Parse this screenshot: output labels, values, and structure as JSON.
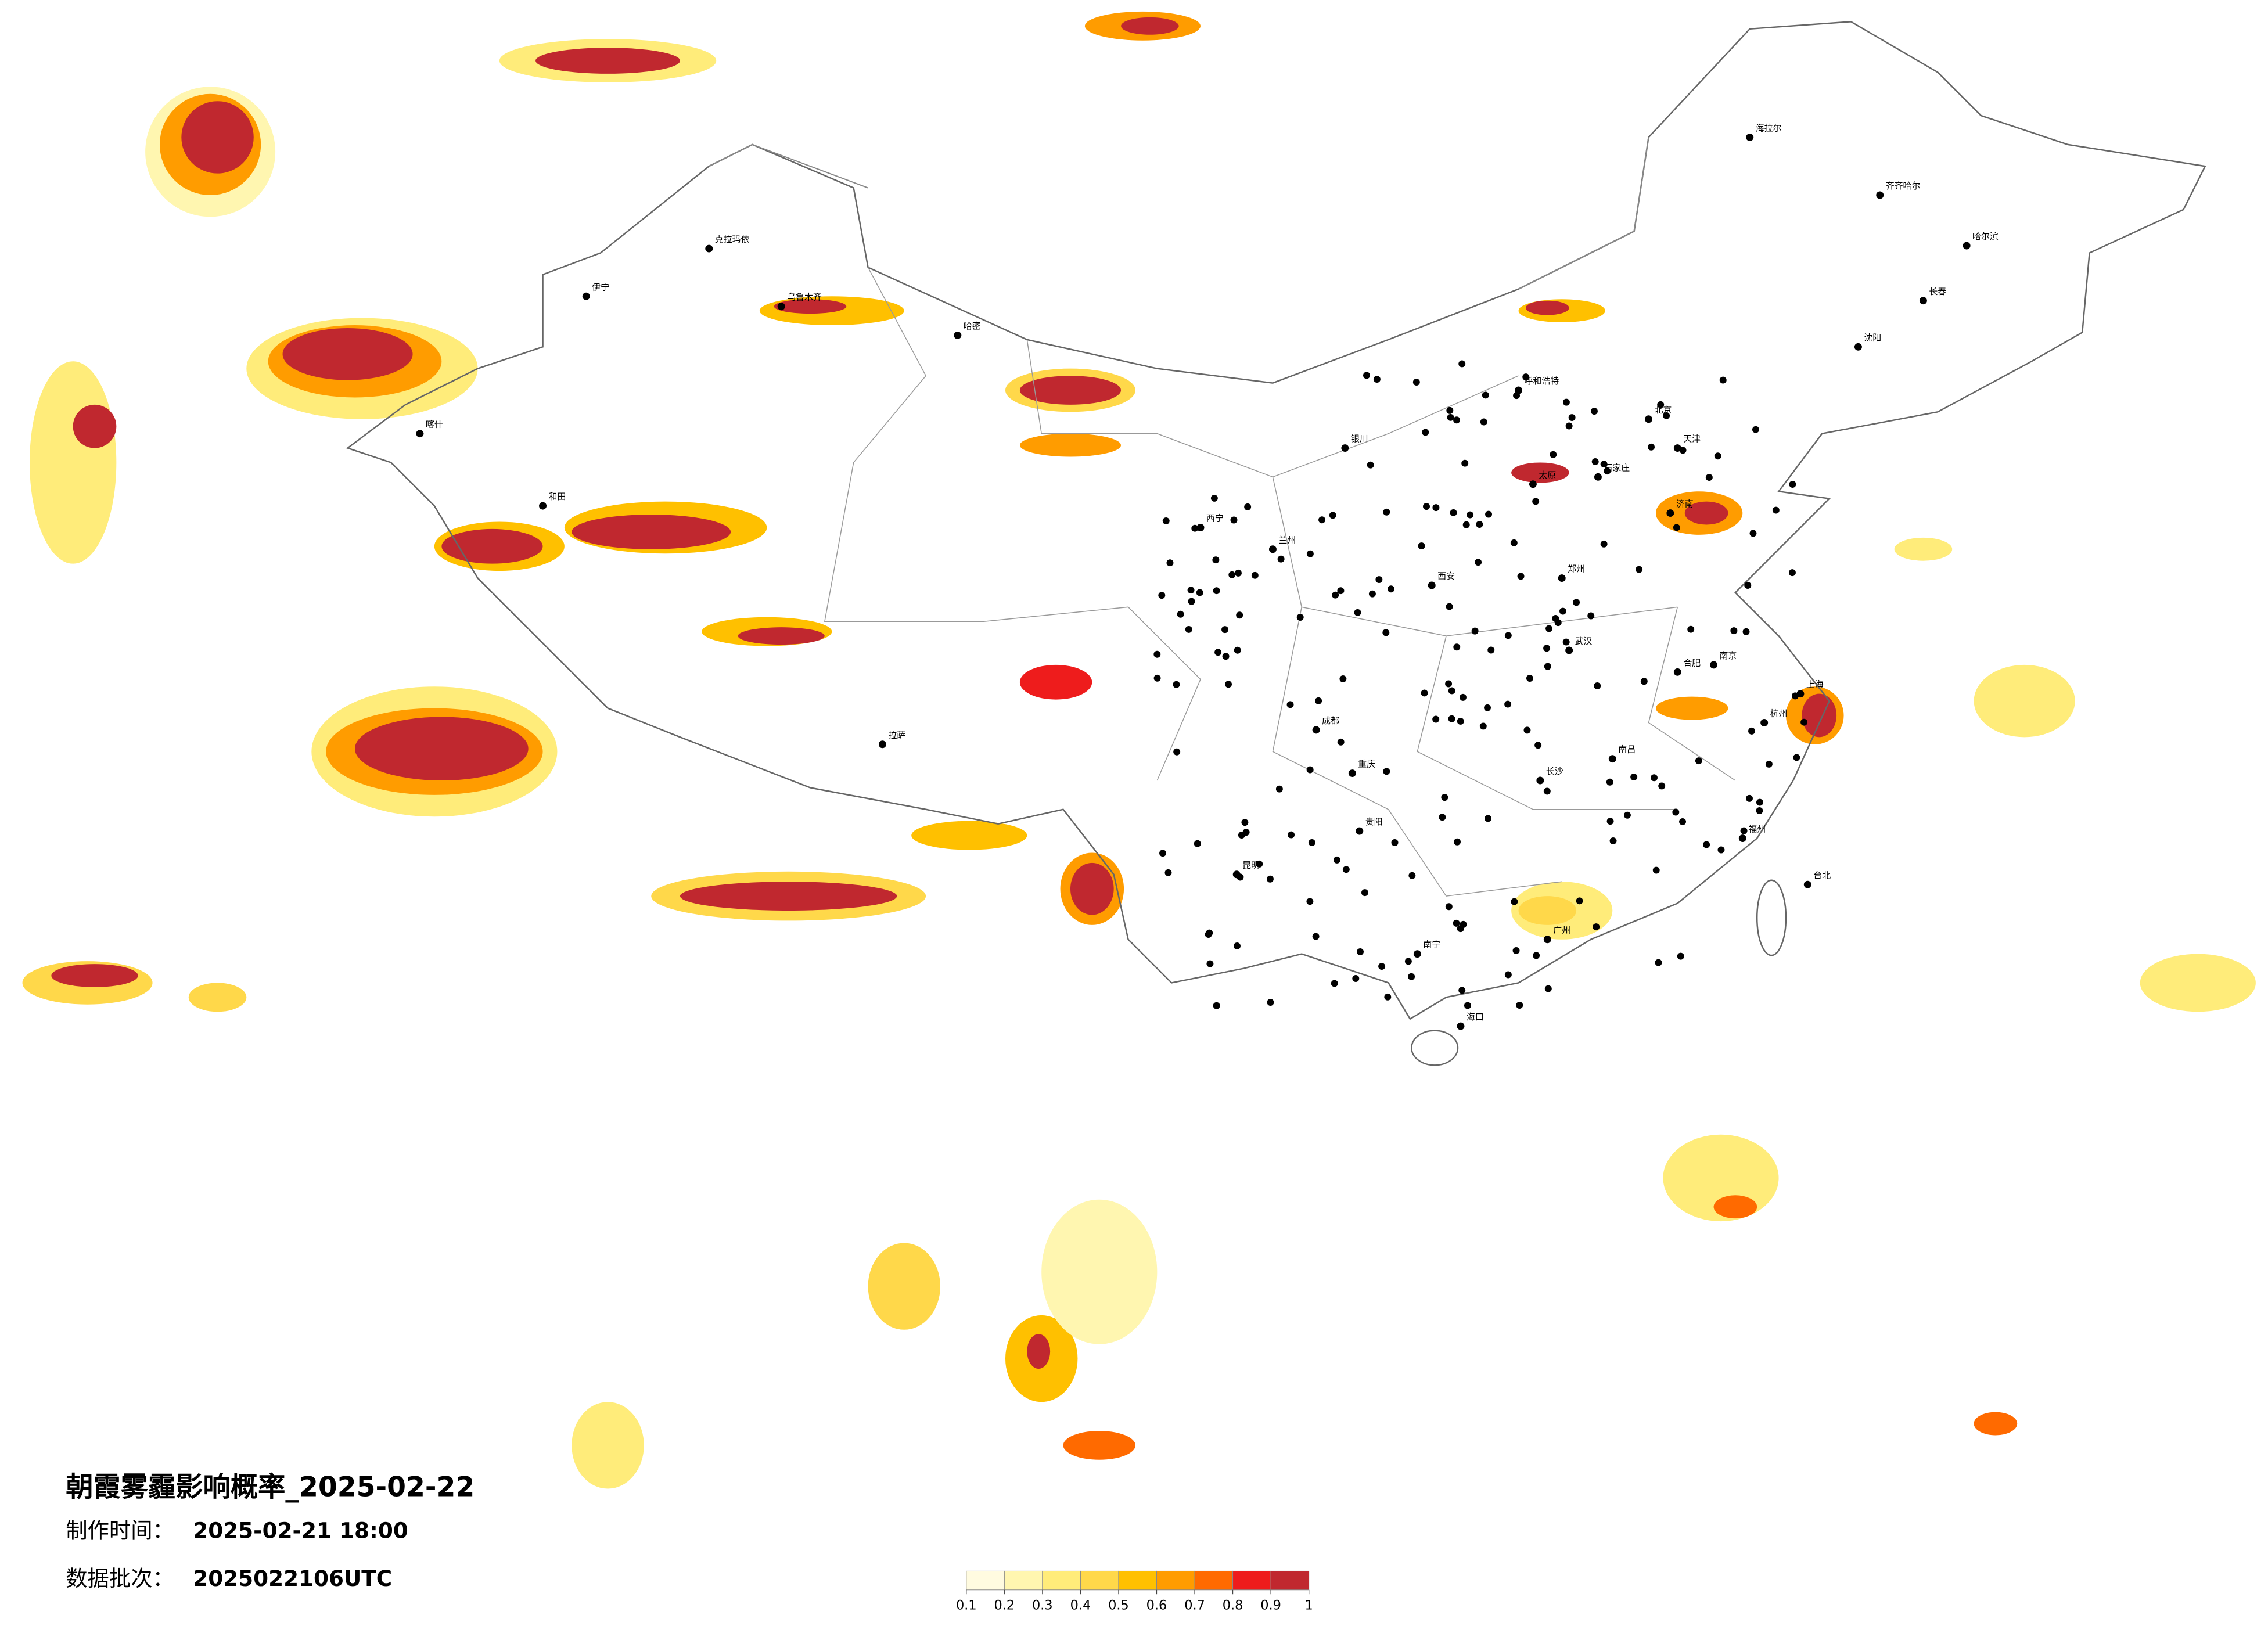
{
  "title": "朝霞雾霾影响概率_2025-02-22",
  "made_label": "制作时间：",
  "made_time": "2025-02-21 18:00",
  "batch_label": "数据批次：",
  "batch": "2025022106UTC",
  "legend": {
    "ticks": [
      0.1,
      0.2,
      0.3,
      0.4,
      0.5,
      0.6,
      0.7,
      0.8,
      0.9,
      1
    ],
    "colors": [
      "#fffbe0",
      "#fff6b0",
      "#ffec7a",
      "#ffd84a",
      "#ffc000",
      "#ff9c00",
      "#ff6a00",
      "#ee1c1c",
      "#c0282f"
    ]
  },
  "cities": [
    "哈尔滨",
    "长春",
    "沈阳",
    "北京",
    "天津",
    "石家庄",
    "太原",
    "济南",
    "郑州",
    "西安",
    "兰州",
    "西宁",
    "银川",
    "呼和浩特",
    "乌鲁木齐",
    "拉萨",
    "成都",
    "重庆",
    "武汉",
    "南京",
    "上海",
    "杭州",
    "合肥",
    "长沙",
    "南昌",
    "福州",
    "广州",
    "南宁",
    "昆明",
    "贵阳",
    "海口",
    "台北",
    "喀什",
    "和田",
    "哈密",
    "克拉玛依",
    "伊宁",
    "海拉尔",
    "齐齐哈尔"
  ]
}
